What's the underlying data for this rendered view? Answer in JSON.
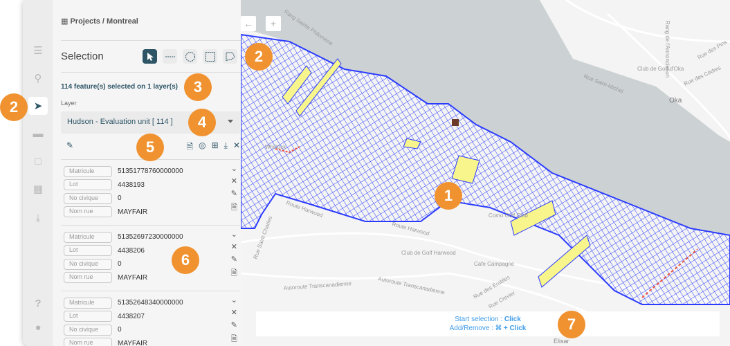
{
  "breadcrumb": "Projects / Montreal",
  "rail": {
    "items": [
      {
        "icon": "layers-icon"
      },
      {
        "icon": "search-icon"
      },
      {
        "icon": "pointer-icon",
        "active": true
      },
      {
        "icon": "ruler-icon"
      },
      {
        "icon": "polygon-edit-icon"
      },
      {
        "icon": "map-icon"
      },
      {
        "icon": "download-icon"
      },
      {
        "icon": "help-icon"
      },
      {
        "icon": "user-icon"
      }
    ]
  },
  "selection": {
    "title": "Selection",
    "tools": [
      "pointer",
      "line",
      "circle",
      "rectangle",
      "polygon"
    ],
    "active_tool": "pointer",
    "count_text": "114 feature(s) selected on 1 layer(s)",
    "layer_label": "Layer",
    "layer_value": "Hudson - Evaluation unit [ 114 ]"
  },
  "features": [
    {
      "Matricule": "51351778760000000",
      "Lot": "4438193",
      "No civique": "0",
      "Nom rue": "MAYFAIR"
    },
    {
      "Matricule": "51352697230000000",
      "Lot": "4438206",
      "No civique": "0",
      "Nom rue": "MAYFAIR"
    },
    {
      "Matricule": "51352648340000000",
      "Lot": "4438207",
      "No civique": "0",
      "Nom rue": "MAYFAIR"
    }
  ],
  "field_labels": {
    "matricule": "Matricule",
    "lot": "Lot",
    "civique": "No civique",
    "rue": "Nom rue"
  },
  "map": {
    "labels": {
      "philomene": "Rang Sainte Philomène",
      "annonciation": "Rang de l'Annonciation",
      "golf_oka": "Club de Golf d'Oka",
      "st_michel": "Rue Saint-Michel",
      "oka": "Oka",
      "cedres": "Rue des Cèdres",
      "pins": "Rue des Pins",
      "whitlock": "Whitlock",
      "harwood1": "Route Harwood",
      "harwood2": "Route Harwood",
      "golf_harwood": "Club de Golf Harwood",
      "como": "Como Golf Club",
      "cafe": "Cafe Campagne",
      "auto1": "Autoroute Transcanadienne",
      "auto2": "Autoroute Transcanadienne",
      "erables": "Rue des Érables",
      "crevier": "Rue Crevier",
      "st_charles": "Rue Saint-Charles",
      "elisar": "Elisar"
    },
    "colors": {
      "parcels": "#2b3cff",
      "selected": "#f7f58c",
      "highlight": "#f0503c",
      "water": "#ccd2d4",
      "land": "#f4f4f4"
    }
  },
  "hint": {
    "line1_prefix": "Start selection : ",
    "line1_key": "Click",
    "line2_prefix": "Add/Remove : ",
    "line2_key": "⌘ + Click"
  },
  "badges": [
    "1",
    "2",
    "2",
    "3",
    "4",
    "5",
    "6",
    "7"
  ],
  "colors": {
    "accent": "#2d5566",
    "badge": "#f0922f",
    "hint": "#3e9be8"
  }
}
